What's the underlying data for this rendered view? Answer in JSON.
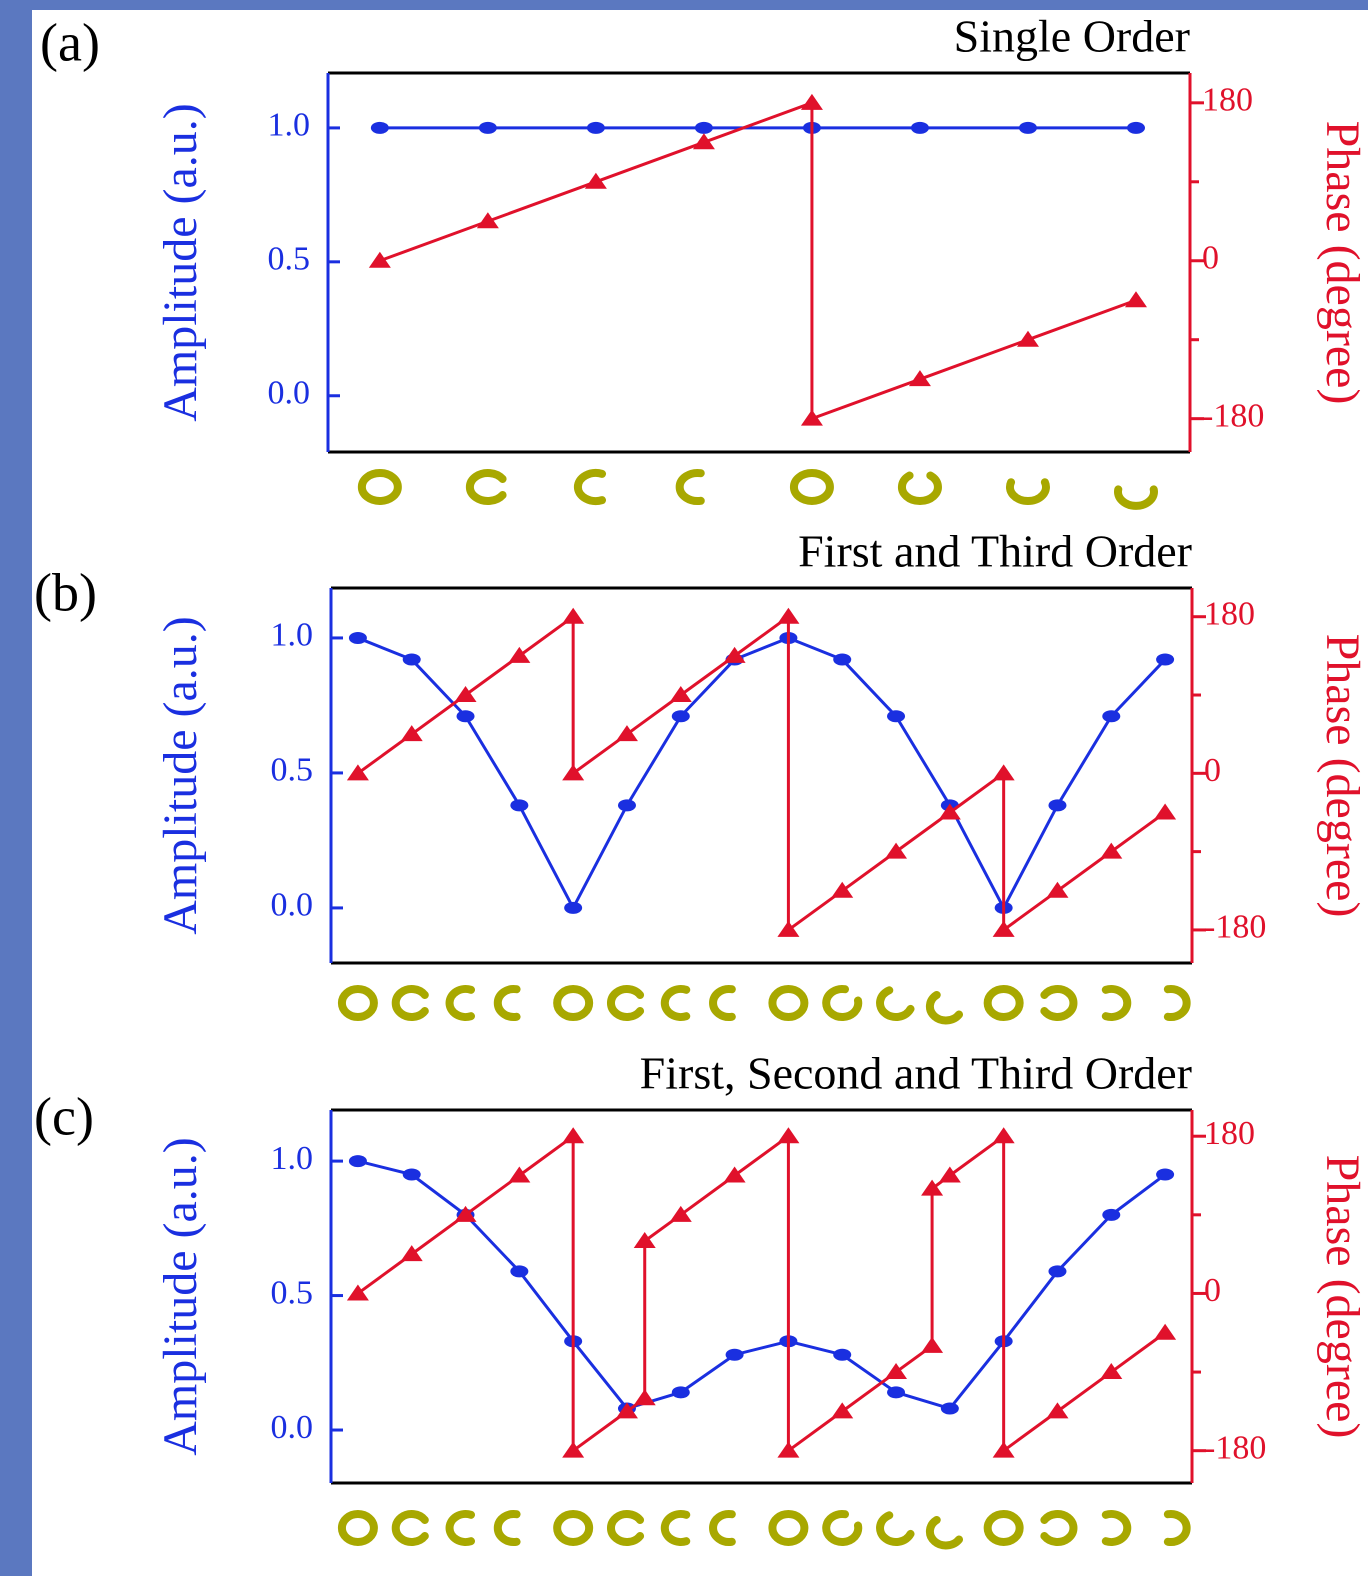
{
  "chart_data": [
    {
      "type": "line",
      "label": "(a)",
      "title": "Single Order",
      "ylabel": "Amplitude (a.u.)",
      "y2label": "Phase (degree)",
      "xlim": [
        -0.48,
        7.5
      ],
      "ylim": [
        -0.21,
        1.205
      ],
      "yticks": [
        {
          "value": 0,
          "label": "0.0"
        },
        0.5,
        {
          "value": 1,
          "label": "1.0"
        }
      ],
      "y2lim": [
        -218,
        214
      ],
      "y2ticks": [
        -180,
        0,
        180
      ],
      "y2minorticks": [
        -90,
        90
      ],
      "series": [
        {
          "color": "#1a2fe0",
          "marker": "ellipse",
          "x": [
            0,
            1,
            2,
            3,
            4,
            5,
            6,
            7
          ],
          "values": [
            1,
            1,
            1,
            1,
            1,
            1,
            1,
            1
          ]
        },
        {
          "color": "#e0112b",
          "marker": "triangle",
          "axis": "y2",
          "x": [
            0,
            1,
            2,
            3,
            4,
            4,
            5,
            6,
            7
          ],
          "values": [
            0,
            45,
            90,
            135,
            180,
            -180,
            -135,
            -90,
            -45
          ]
        }
      ]
    },
    {
      "type": "line",
      "label": "(b)",
      "title": "First and Third Order",
      "ylabel": "Amplitude (a.u.)",
      "y2label": "Phase (degree)",
      "xlim": [
        -0.5,
        15.5
      ],
      "ylim": [
        -0.204,
        1.185
      ],
      "yticks": [
        {
          "value": 0,
          "label": "0.0"
        },
        0.5,
        {
          "value": 1,
          "label": "1.0"
        }
      ],
      "y2lim": [
        -218,
        213
      ],
      "y2ticks": [
        -180,
        0,
        180
      ],
      "y2minorticks": [
        -90,
        90
      ],
      "series": [
        {
          "color": "#1a2fe0",
          "marker": "ellipse",
          "x": [
            0,
            1,
            2,
            3,
            4,
            5,
            6,
            7,
            8,
            9,
            10,
            11,
            12,
            13,
            14,
            15
          ],
          "values": [
            1,
            0.92,
            0.71,
            0.38,
            0,
            0.38,
            0.71,
            0.92,
            1,
            0.92,
            0.71,
            0.38,
            0,
            0.38,
            0.71,
            0.92
          ]
        },
        {
          "color": "#e0112b",
          "marker": "triangle",
          "axis": "y2",
          "x": [
            0,
            1,
            2,
            3,
            4,
            4,
            5,
            6,
            7,
            8,
            8,
            9,
            10,
            11,
            12,
            12,
            13,
            14,
            15
          ],
          "values": [
            0,
            45,
            90,
            135,
            180,
            0,
            45,
            90,
            135,
            180,
            -180,
            -135,
            -90,
            -45,
            0,
            -180,
            -135,
            -90,
            -45
          ]
        }
      ]
    },
    {
      "type": "line",
      "label": "(c)",
      "title": "First, Second and Third Order",
      "ylabel": "Amplitude (a.u.)",
      "y2label": "Phase (degree)",
      "xlim": [
        -0.5,
        15.5
      ],
      "ylim": [
        -0.197,
        1.19
      ],
      "yticks": [
        {
          "value": 0,
          "label": "0.0"
        },
        0.5,
        {
          "value": 1,
          "label": "1.0"
        }
      ],
      "y2lim": [
        -217,
        210
      ],
      "y2ticks": [
        -180,
        0,
        180
      ],
      "y2minorticks": [
        -90,
        90
      ],
      "series": [
        {
          "color": "#1a2fe0",
          "marker": "ellipse",
          "x": [
            0,
            1,
            2,
            3,
            4,
            5,
            6,
            7,
            8,
            9,
            10,
            11,
            12,
            13,
            14,
            15
          ],
          "values": [
            1,
            0.95,
            0.8,
            0.59,
            0.33,
            0.08,
            0.14,
            0.28,
            0.33,
            0.28,
            0.14,
            0.08,
            0.33,
            0.59,
            0.8,
            0.95
          ]
        },
        {
          "color": "#e0112b",
          "marker": "triangle",
          "axis": "y2",
          "x": [
            0,
            1,
            2,
            3,
            4,
            4,
            5,
            5.33,
            5.33,
            6,
            7,
            8,
            8,
            9,
            10,
            10.67,
            10.67,
            11,
            12,
            12,
            13,
            14,
            15
          ],
          "values": [
            0,
            45,
            90,
            135,
            180,
            -180,
            -135,
            -120,
            60,
            90,
            135,
            180,
            -180,
            -135,
            -90,
            -60,
            120,
            135,
            180,
            -180,
            -135,
            -90,
            -45
          ]
        }
      ]
    }
  ]
}
